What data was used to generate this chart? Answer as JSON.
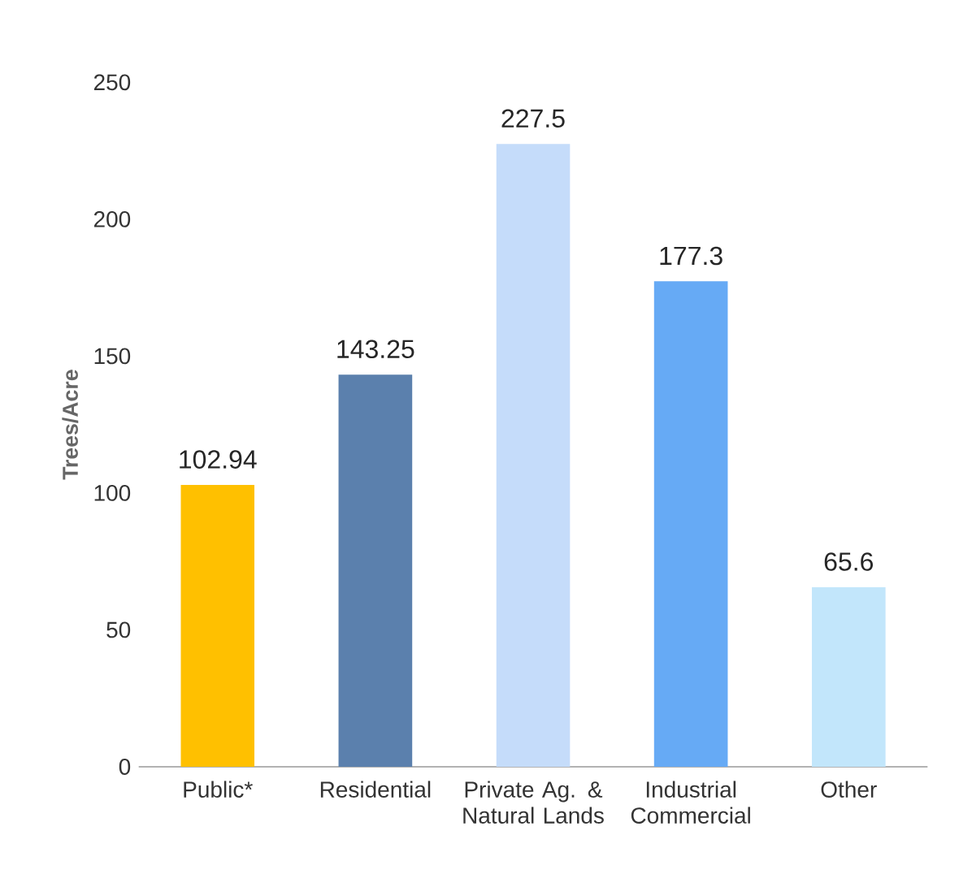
{
  "chart_data": {
    "type": "bar",
    "ylabel": "Trees/Acre",
    "categories": [
      "Public*",
      "Residential",
      "Private Ag. & Natural Lands",
      "Industrial Commercial",
      "Other"
    ],
    "values": [
      102.94,
      143.25,
      227.5,
      177.3,
      65.6
    ],
    "colors": [
      "#ffc000",
      "#5b80ad",
      "#c5dcfa",
      "#66aaf5",
      "#c2e6fb"
    ],
    "ylim": [
      0,
      250
    ],
    "yticks": [
      0,
      50,
      100,
      150,
      200,
      250
    ],
    "data_labels": true
  }
}
